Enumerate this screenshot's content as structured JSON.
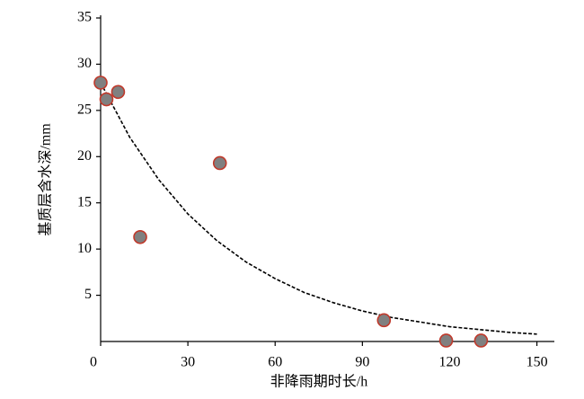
{
  "chart_data": {
    "type": "scatter",
    "x_label": "非降雨期时长/h",
    "y_label": "基质层含水深/mm",
    "x": [
      0,
      2,
      6,
      13.6,
      41,
      97.4,
      118.8,
      130.8
    ],
    "values": [
      28,
      26.2,
      27,
      11.3,
      19.3,
      2.3,
      0.1,
      0.1
    ],
    "color": "#808080",
    "edge_color": "#c0392b",
    "xlim": [
      0,
      156
    ],
    "ylim": [
      0,
      35
    ],
    "xticks": [
      0,
      30,
      60,
      90,
      120,
      150
    ],
    "yticks": [
      5,
      10,
      15,
      20,
      25,
      30,
      35
    ],
    "trendline": {
      "color": "#000000",
      "x": [
        0,
        10,
        20,
        30,
        40,
        50,
        60,
        70,
        80,
        90,
        100,
        110,
        120,
        130,
        140,
        150
      ],
      "values": [
        28,
        22.1,
        17.5,
        13.8,
        10.9,
        8.6,
        6.8,
        5.3,
        4.2,
        3.3,
        2.6,
        2.1,
        1.6,
        1.3,
        1.0,
        0.8
      ]
    }
  }
}
